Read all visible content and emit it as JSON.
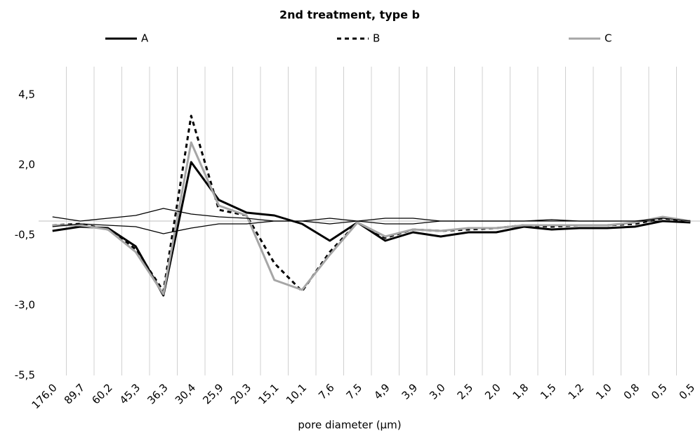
{
  "chart_data": {
    "type": "line",
    "title": "2nd treatment, type b",
    "x_label": "pore diameter (μm)",
    "categories": [
      "176,0",
      "89,7",
      "60,2",
      "45,3",
      "36,3",
      "30,4",
      "25,9",
      "20,3",
      "15,1",
      "10,1",
      "7,6",
      "7,5",
      "4,9",
      "3,9",
      "3,0",
      "2,5",
      "2,0",
      "1,8",
      "1,5",
      "1,2",
      "1,0",
      "0,8",
      "0,5",
      "0,5"
    ],
    "series": [
      {
        "name": "A",
        "color": "#000000",
        "width": 3,
        "style": "solid",
        "values": [
          -0.35,
          -0.2,
          -0.25,
          -0.9,
          -2.65,
          2.1,
          0.75,
          0.3,
          0.2,
          -0.1,
          -0.7,
          -0.05,
          -0.7,
          -0.4,
          -0.55,
          -0.4,
          -0.4,
          -0.2,
          -0.3,
          -0.25,
          -0.25,
          -0.2,
          0,
          -0.05
        ]
      },
      {
        "name": "B",
        "color": "#000000",
        "width": 3,
        "style": "dashed",
        "values": [
          -0.15,
          -0.1,
          -0.3,
          -1.0,
          -2.5,
          3.75,
          0.4,
          0.2,
          -1.5,
          -2.5,
          -1.1,
          -0.05,
          -0.6,
          -0.3,
          -0.35,
          -0.3,
          -0.25,
          -0.15,
          -0.2,
          -0.15,
          -0.15,
          -0.1,
          0.1,
          0
        ]
      },
      {
        "name": "C",
        "color": "#a6a6a6",
        "width": 3,
        "style": "solid",
        "values": [
          -0.15,
          -0.15,
          -0.3,
          -1.1,
          -2.6,
          2.8,
          0.55,
          0.2,
          -2.1,
          -2.45,
          -1.2,
          -0.05,
          -0.55,
          -0.3,
          -0.35,
          -0.25,
          -0.25,
          -0.15,
          -0.15,
          -0.15,
          -0.15,
          -0.05,
          0.15,
          0
        ]
      },
      {
        "color": "#000000",
        "width": 1.3,
        "style": "solid",
        "values": [
          0.15,
          0,
          0.1,
          0.2,
          0.45,
          0.25,
          0.15,
          0.1,
          0,
          0,
          0.1,
          0,
          0.1,
          0.1,
          0,
          0,
          0,
          0,
          0.05,
          0,
          0,
          0,
          0.1,
          0
        ]
      },
      {
        "color": "#000000",
        "width": 1.3,
        "style": "solid",
        "values": [
          -0.2,
          -0.1,
          -0.15,
          -0.2,
          -0.45,
          -0.25,
          -0.1,
          -0.1,
          0,
          0,
          -0.1,
          0,
          -0.1,
          -0.1,
          0,
          0,
          0,
          0,
          0,
          0,
          0,
          0,
          0,
          -0.05
        ]
      }
    ],
    "ylim": [
      -5.5,
      5.5
    ],
    "yticks": [
      {
        "value": 4.5,
        "label": "4,5"
      },
      {
        "value": 2,
        "label": "2,0"
      },
      {
        "value": -0.5,
        "label": "-0,5"
      },
      {
        "value": -3,
        "label": "-3,0"
      },
      {
        "value": -5.5,
        "label": "-5,5"
      }
    ],
    "grid": "x",
    "legend": "top"
  }
}
